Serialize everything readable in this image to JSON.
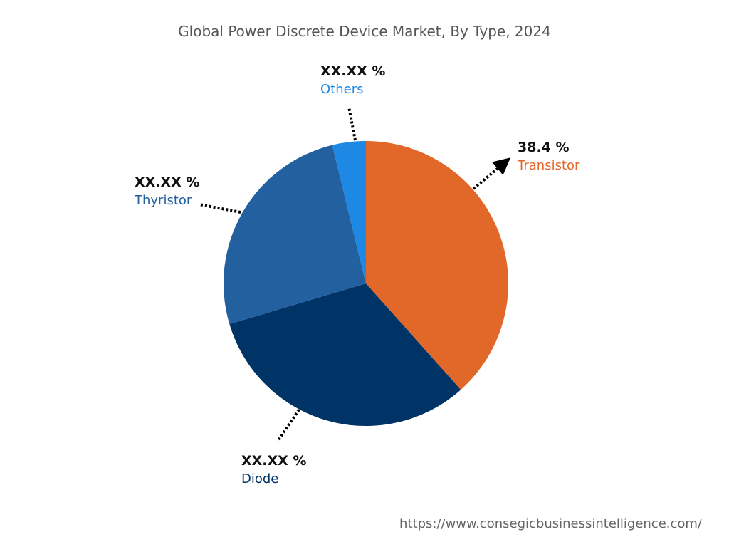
{
  "chart_data": {
    "type": "pie",
    "title": "Global Power Discrete Device Market, By Type, 2024",
    "start_angle": "top",
    "direction": "clockwise",
    "slices": [
      {
        "name": "Transistor",
        "value": 38.4,
        "label": "38.4 %",
        "color": "#E2682A"
      },
      {
        "name": "Diode",
        "value": 32.0,
        "label": "XX.XX %",
        "color": "#003366"
      },
      {
        "name": "Thyristor",
        "value": 25.8,
        "label": "XX.XX %",
        "color": "#23609F"
      },
      {
        "name": "Others",
        "value": 3.8,
        "label": "XX.XX %",
        "color": "#1E88E5"
      }
    ]
  },
  "footer": {
    "url": "https://www.consegicbusinessintelligence.com/"
  }
}
